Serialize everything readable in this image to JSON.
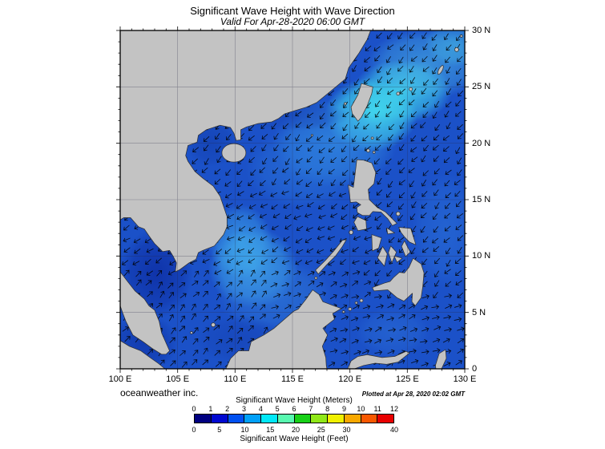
{
  "header": {
    "title": "Significant Wave Height with Wave Direction",
    "subtitle": "Valid For Apr-28-2020 06:00 GMT"
  },
  "map": {
    "x_ticks": [
      "100 E",
      "105 E",
      "110 E",
      "115 E",
      "120 E",
      "125 E",
      "130 E"
    ],
    "y_ticks": [
      "30 N",
      "25 N",
      "20 N",
      "15 N",
      "10 N",
      "5 N",
      "0"
    ],
    "colors": {
      "ocean": "#1b51c8",
      "land": "#c3c3c3",
      "coastline": "#2f2f2f",
      "arrows": "#000000",
      "grid": "rgba(40,40,70,0.42)"
    }
  },
  "footer": {
    "credit": "oceanweather inc.",
    "plotted": "Plotted at Apr 28, 2020 02:02 GMT"
  },
  "legend": {
    "title_meters": "Significant Wave Height (Meters)",
    "title_feet": "Significant Wave Height (Feet)",
    "meters_ticks": [
      "0",
      "1",
      "2",
      "3",
      "4",
      "5",
      "6",
      "7",
      "8",
      "9",
      "10",
      "11",
      "12"
    ],
    "feet_ticks": [
      "0",
      "5",
      "10",
      "15",
      "20",
      "25",
      "30",
      "40"
    ],
    "colors": [
      "#000080",
      "#0008d0",
      "#0050f0",
      "#00a0f8",
      "#00e8f8",
      "#58f8b0",
      "#18d018",
      "#90e818",
      "#f0f000",
      "#f8a800",
      "#f85800",
      "#e80000"
    ]
  }
}
